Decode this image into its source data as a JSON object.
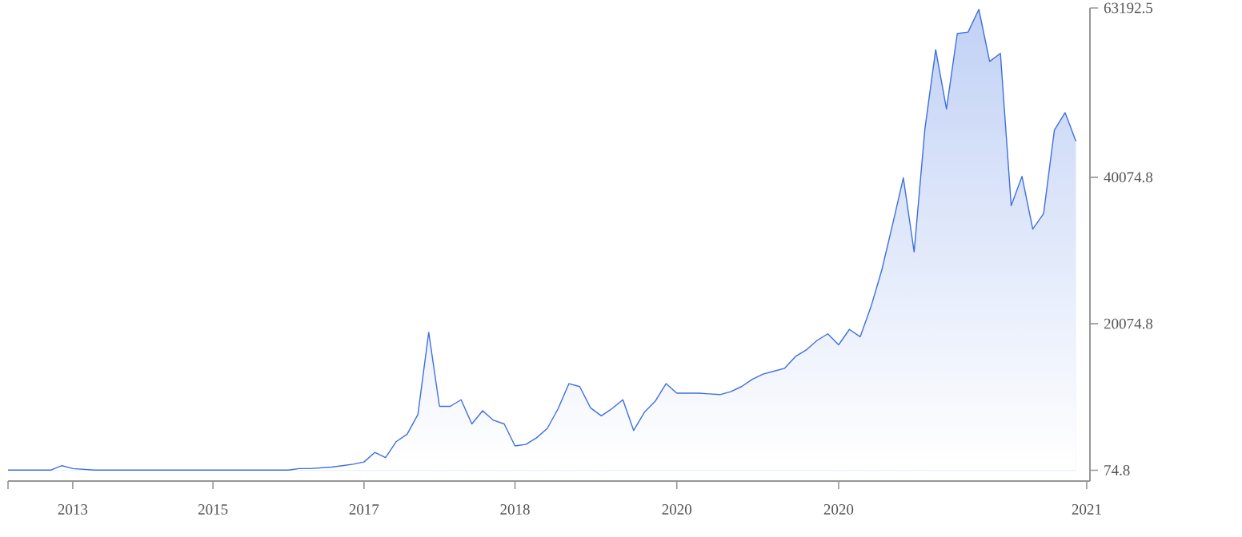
{
  "chart_data": {
    "type": "area",
    "color": "#3d6fe0",
    "categories": [
      null,
      null,
      null,
      null,
      null,
      null,
      "2013",
      null,
      null,
      null,
      null,
      null,
      null,
      null,
      null,
      null,
      null,
      null,
      null,
      "2015",
      null,
      null,
      null,
      null,
      null,
      null,
      null,
      null,
      null,
      null,
      null,
      null,
      null,
      "2017",
      null,
      null,
      null,
      null,
      null,
      null,
      null,
      null,
      null,
      null,
      null,
      null,
      null,
      "2018",
      null,
      null,
      null,
      null,
      null,
      null,
      null,
      null,
      null,
      null,
      null,
      null,
      null,
      null,
      "2020",
      null,
      null,
      null,
      null,
      null,
      null,
      null,
      null,
      null,
      null,
      null,
      null,
      null,
      null,
      "2020",
      null,
      null,
      null,
      null,
      null,
      null,
      null,
      null,
      null,
      null,
      null,
      null,
      null,
      null,
      null,
      null,
      null,
      null,
      null,
      null,
      null,
      null,
      "2021"
    ],
    "values": [
      100,
      100,
      100,
      100,
      100,
      700,
      300,
      200,
      100,
      100,
      100,
      100,
      100,
      100,
      100,
      100,
      100,
      100,
      100,
      100,
      100,
      100,
      100,
      100,
      100,
      100,
      100,
      300,
      300,
      400,
      500,
      700,
      900,
      1200,
      2500,
      1800,
      4000,
      5000,
      7700,
      18900,
      8800,
      8800,
      9700,
      6400,
      8200,
      6900,
      6400,
      3400,
      3600,
      4500,
      5800,
      8500,
      11900,
      11500,
      8600,
      7500,
      8500,
      9700,
      5500,
      8000,
      9500,
      11900,
      10600,
      10600,
      10600,
      10500,
      10400,
      10800,
      11500,
      12500,
      13200,
      13600,
      14000,
      15600,
      16500,
      17800,
      18700,
      17200,
      19300,
      18300,
      22400,
      27400,
      33600,
      40000,
      29900,
      46700,
      57500,
      49400,
      59700,
      59900,
      63000,
      55900,
      57000,
      36200,
      40200,
      33000,
      35100,
      46500,
      48900,
      45000,
      null
    ],
    "ylim": [
      -1400,
      63192.5
    ],
    "yticks": [
      74.8,
      20074.8,
      40074.8,
      63192.5
    ],
    "grid": false,
    "marker": "none",
    "line_style": "solid"
  }
}
